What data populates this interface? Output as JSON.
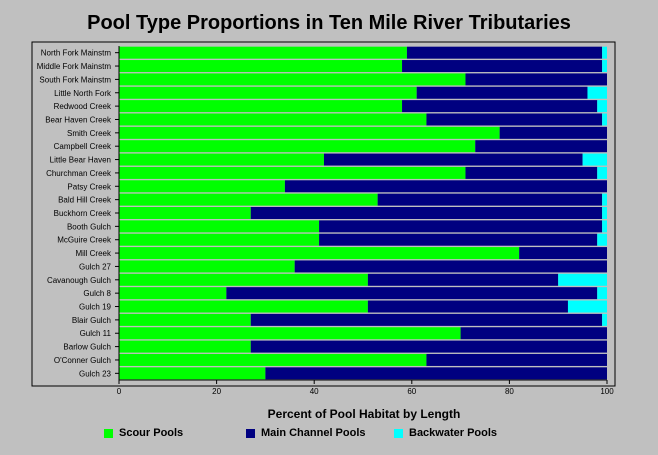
{
  "chart_data": {
    "type": "bar",
    "orientation": "horizontal",
    "stacked": true,
    "title": "Pool Type Proportions in Ten Mile River Tributaries",
    "xlabel": "Percent of Pool Habitat by Length",
    "ylabel": "",
    "xlim": [
      0,
      100
    ],
    "xticks": [
      0,
      20,
      40,
      60,
      80,
      100
    ],
    "grid": false,
    "legend_position": "bottom",
    "categories": [
      "North Fork Mainstm",
      "Middle Fork Mainstm",
      "South Fork Mainstm",
      "Little North Fork",
      "Redwood Creek",
      "Bear Haven Creek",
      "Smith Creek",
      "Campbell Creek",
      "Little Bear Haven",
      "Churchman Creek",
      "Patsy Creek",
      "Bald Hill Creek",
      "Buckhorn Creek",
      "Booth Gulch",
      "McGuire Creek",
      "Mill Creek",
      "Gulch 27",
      "Cavanough Gulch",
      "Gulch 8",
      "Gulch 19",
      "Blair Gulch",
      "Gulch 11",
      "Barlow Gulch",
      "O'Conner Gulch",
      "Gulch 23"
    ],
    "series": [
      {
        "name": "Scour Pools",
        "color": "#00ff00",
        "values": [
          59,
          58,
          71,
          61,
          58,
          63,
          78,
          73,
          42,
          71,
          34,
          53,
          27,
          41,
          41,
          82,
          36,
          51,
          22,
          51,
          27,
          70,
          27,
          63,
          30
        ]
      },
      {
        "name": "Main Channel Pools",
        "color": "#000080",
        "values": [
          40,
          41,
          29,
          35,
          40,
          36,
          22,
          27,
          53,
          27,
          66,
          46,
          72,
          58,
          57,
          18,
          64,
          39,
          76,
          41,
          72,
          30,
          73,
          37,
          70
        ]
      },
      {
        "name": "Backwater Pools",
        "color": "#00ffff",
        "values": [
          1,
          1,
          0,
          4,
          2,
          1,
          0,
          0,
          5,
          2,
          0,
          1,
          1,
          1,
          2,
          0,
          0,
          10,
          2,
          8,
          1,
          0,
          0,
          0,
          0
        ]
      }
    ]
  }
}
